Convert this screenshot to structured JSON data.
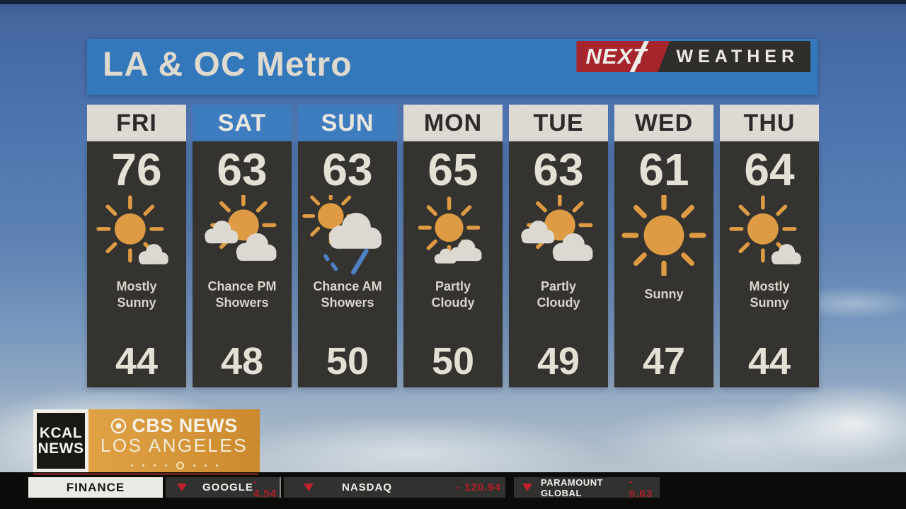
{
  "header": {
    "title": "LA & OC Metro",
    "brand": {
      "next": "NEXT",
      "weather": "WEATHER"
    }
  },
  "forecast": {
    "region": "LA & OC Metro",
    "days": [
      {
        "day": "FRI",
        "high": "76",
        "low": "44",
        "condition": "Mostly Sunny",
        "icon": "mostly-sunny",
        "weekend": false
      },
      {
        "day": "SAT",
        "high": "63",
        "low": "48",
        "condition": "Chance PM Showers",
        "icon": "sun-behind-clouds",
        "weekend": true
      },
      {
        "day": "SUN",
        "high": "63",
        "low": "50",
        "condition": "Chance AM Showers",
        "icon": "chance-am-showers",
        "weekend": true
      },
      {
        "day": "MON",
        "high": "65",
        "low": "50",
        "condition": "Partly Cloudy",
        "icon": "partly-cloudy",
        "weekend": false
      },
      {
        "day": "TUE",
        "high": "63",
        "low": "49",
        "condition": "Partly Cloudy",
        "icon": "sun-behind-clouds",
        "weekend": false
      },
      {
        "day": "WED",
        "high": "61",
        "low": "47",
        "condition": "Sunny",
        "icon": "sunny",
        "weekend": false
      },
      {
        "day": "THU",
        "high": "64",
        "low": "44",
        "condition": "Mostly Sunny",
        "icon": "mostly-sunny",
        "weekend": false
      }
    ]
  },
  "station": {
    "kcal_line1": "KCAL",
    "kcal_line2": "NEWS",
    "cbs_news": "CBS NEWS",
    "cbs_city": "LOS ANGELES"
  },
  "ticker": {
    "category": "FINANCE",
    "items": [
      {
        "name": "GOOGLE",
        "change": "- 4.54",
        "direction": "down"
      },
      {
        "name": "NASDAQ",
        "change": "- 120.94",
        "direction": "down"
      },
      {
        "name": "PARAMOUNT GLOBAL",
        "change": "- 0.63",
        "direction": "down"
      }
    ]
  },
  "colors": {
    "header_blue": "#3478BC",
    "weekend_blue": "#3D7DBF",
    "panel_charcoal": "#343330",
    "sun_orange": "#DE9B44",
    "cloud_gray": "#DBD9D1",
    "rain_blue": "#4E82C4",
    "brand_red": "#A6242C",
    "cbs_orange": "#D89A3C",
    "ticker_red": "#B01D26",
    "cream_text": "#E3E0D6"
  }
}
